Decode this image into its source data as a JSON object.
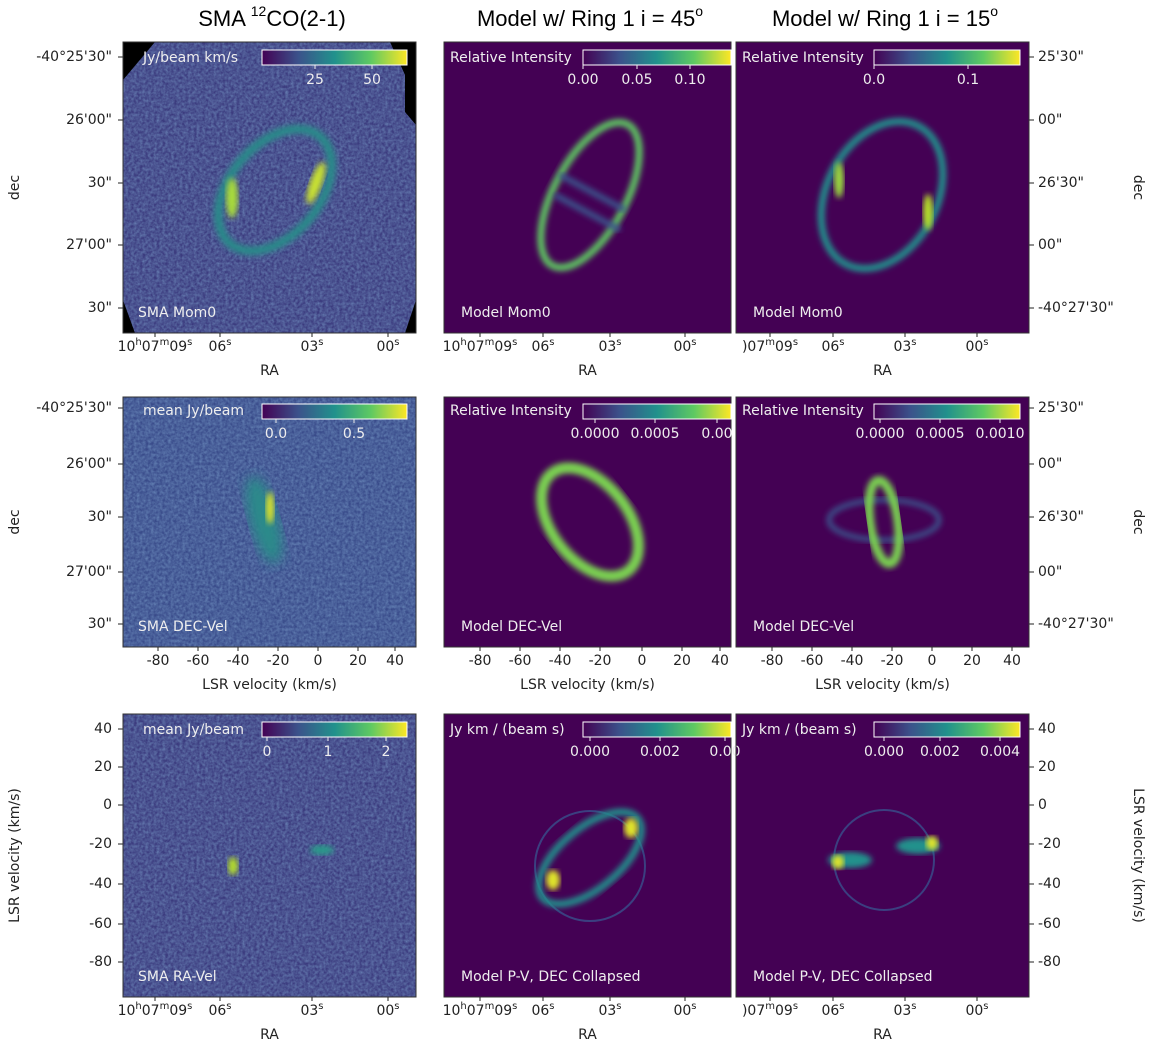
{
  "column_titles": [
    {
      "text": "SMA ",
      "sup": "12",
      "rest": "CO(2-1)"
    },
    {
      "text": "Model w/ Ring 1 i = 45",
      "sup": "o"
    },
    {
      "text": "Model w/ Ring 1 i = 15",
      "sup": "o"
    }
  ],
  "rows": [
    {
      "y_label_left": "dec",
      "y_label_right": "dec",
      "x_label": "RA",
      "y_ticks_left": [
        "-40°25'30\"",
        "26'00\"",
        "30\"",
        "27'00\"",
        "30\""
      ],
      "y_ticks_right": [
        "25'30\"",
        "00\"",
        "26'30\"",
        "00\"",
        "-40°27'30\""
      ],
      "panels": [
        {
          "colorbar_label": "Jy/beam km/s",
          "colorbar_ticks": [
            "25",
            "50"
          ],
          "caption": "SMA Mom0",
          "x_ticks": [
            "10h07m09s",
            "06s",
            "03s",
            "00s"
          ]
        },
        {
          "colorbar_label": "Relative Intensity",
          "colorbar_ticks": [
            "0.00",
            "0.05",
            "0.10"
          ],
          "caption": "Model Mom0",
          "x_ticks": [
            "10h07m09s",
            "06s",
            "03s",
            "00s"
          ]
        },
        {
          "colorbar_label": "Relative Intensity",
          "colorbar_ticks": [
            "0.0",
            "0.1"
          ],
          "caption": "Model Mom0",
          "x_ticks": [
            ")07m09s",
            "06s",
            "03s",
            "00s"
          ]
        }
      ]
    },
    {
      "y_label_left": "dec",
      "y_label_right": "dec",
      "x_label": "LSR velocity (km/s)",
      "y_ticks_left": [
        "-40°25'30\"",
        "26'00\"",
        "30\"",
        "27'00\"",
        "30\""
      ],
      "y_ticks_right": [
        "25'30\"",
        "00\"",
        "26'30\"",
        "00\"",
        "-40°27'30\""
      ],
      "panels": [
        {
          "colorbar_label": "mean Jy/beam",
          "colorbar_ticks": [
            "0.0",
            "0.5"
          ],
          "caption": "SMA DEC-Vel",
          "x_ticks": [
            "-80",
            "-60",
            "-40",
            "-20",
            "0",
            "20",
            "40"
          ]
        },
        {
          "colorbar_label": "Relative Intensity",
          "colorbar_ticks": [
            "0.0000",
            "0.0005",
            "0.00"
          ],
          "caption": "Model DEC-Vel",
          "x_ticks": [
            "-80",
            "-60",
            "-40",
            "-20",
            "0",
            "20",
            "40"
          ]
        },
        {
          "colorbar_label": "Relative Intensity",
          "colorbar_ticks": [
            "0.0000",
            "0.0005",
            "0.0010"
          ],
          "caption": "Model DEC-Vel",
          "x_ticks": [
            "-80",
            "-60",
            "-40",
            "-20",
            "0",
            "20",
            "40"
          ]
        }
      ]
    },
    {
      "y_label_left": "LSR velocity (km/s)",
      "y_label_right": "LSR velocity (km/s)",
      "x_label": "RA",
      "y_ticks_left": [
        "40",
        "20",
        "0",
        "-20",
        "-40",
        "-60",
        "-80"
      ],
      "y_ticks_right": [
        "40",
        "20",
        "0",
        "-20",
        "-40",
        "-60",
        "-80"
      ],
      "panels": [
        {
          "colorbar_label": "mean Jy/beam",
          "colorbar_ticks": [
            "0",
            "1",
            "2"
          ],
          "caption": "SMA RA-Vel",
          "x_ticks": [
            "10h07m09s",
            "06s",
            "03s",
            "00s"
          ]
        },
        {
          "colorbar_label": "Jy km / (beam s)",
          "colorbar_ticks": [
            "0.000",
            "0.002",
            "0.00"
          ],
          "caption": "Model P-V, DEC Collapsed",
          "x_ticks": [
            "10h07m09s",
            "06s",
            "03s",
            "00s"
          ]
        },
        {
          "colorbar_label": "Jy km / (beam s)",
          "colorbar_ticks": [
            "0.000",
            "0.002",
            "0.004"
          ],
          "caption": "Model P-V, DEC Collapsed",
          "x_ticks": [
            ")07m09s",
            "06s",
            "03s",
            "00s"
          ]
        }
      ]
    }
  ]
}
